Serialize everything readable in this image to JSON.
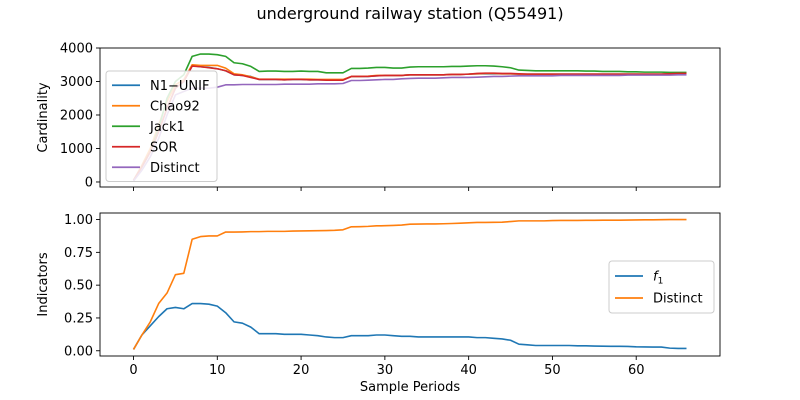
{
  "chart_data": [
    {
      "type": "line",
      "title": "underground railway station (Q55491)",
      "xlabel": "",
      "ylabel": "Cardinality",
      "xlim": [
        -4,
        70
      ],
      "ylim": [
        -150,
        4000
      ],
      "xticks": [
        0,
        10,
        20,
        30,
        40,
        50,
        60
      ],
      "yticks": [
        0,
        1000,
        2000,
        3000,
        4000
      ],
      "xtick_labels_visible": false,
      "legend_position": "center-left",
      "x": [
        0,
        1,
        2,
        3,
        4,
        5,
        6,
        7,
        8,
        9,
        10,
        11,
        12,
        13,
        14,
        15,
        16,
        17,
        18,
        19,
        20,
        21,
        22,
        23,
        24,
        25,
        26,
        27,
        28,
        29,
        30,
        31,
        32,
        33,
        34,
        35,
        36,
        37,
        38,
        39,
        40,
        41,
        42,
        43,
        44,
        45,
        46,
        47,
        48,
        49,
        50,
        51,
        52,
        53,
        54,
        55,
        56,
        57,
        58,
        59,
        60,
        61,
        62,
        63,
        64,
        65,
        66
      ],
      "series": [
        {
          "name": "N1−UNIF",
          "color": "#1f77b4",
          "values": [
            50,
            450,
            900,
            1500,
            2200,
            2800,
            3000,
            3470,
            3440,
            3420,
            3380,
            3320,
            3200,
            3180,
            3150,
            3060,
            3060,
            3060,
            3050,
            3060,
            3060,
            3050,
            3050,
            3050,
            3050,
            3050,
            3150,
            3150,
            3150,
            3170,
            3180,
            3180,
            3180,
            3200,
            3200,
            3200,
            3200,
            3200,
            3210,
            3210,
            3220,
            3230,
            3230,
            3230,
            3230,
            3230,
            3220,
            3220,
            3220,
            3220,
            3220,
            3220,
            3220,
            3220,
            3220,
            3220,
            3220,
            3220,
            3220,
            3220,
            3220,
            3220,
            3220,
            3220,
            3230,
            3240,
            3240
          ]
        },
        {
          "name": "Chao92",
          "color": "#ff7f0e",
          "values": [
            50,
            500,
            1000,
            1700,
            2400,
            2900,
            3050,
            3500,
            3480,
            3480,
            3480,
            3400,
            3230,
            3200,
            3140,
            3070,
            3070,
            3070,
            3070,
            3070,
            3070,
            3070,
            3060,
            3060,
            3060,
            3060,
            3150,
            3150,
            3160,
            3180,
            3180,
            3180,
            3180,
            3200,
            3200,
            3200,
            3200,
            3200,
            3210,
            3210,
            3220,
            3230,
            3240,
            3240,
            3230,
            3230,
            3220,
            3220,
            3220,
            3220,
            3220,
            3220,
            3220,
            3220,
            3220,
            3220,
            3220,
            3220,
            3220,
            3220,
            3220,
            3220,
            3220,
            3220,
            3230,
            3240,
            3240
          ]
        },
        {
          "name": "Jack1",
          "color": "#2ca02c",
          "values": [
            50,
            450,
            900,
            1600,
            2500,
            3000,
            3200,
            3750,
            3820,
            3820,
            3800,
            3750,
            3560,
            3530,
            3450,
            3300,
            3310,
            3310,
            3300,
            3300,
            3310,
            3300,
            3300,
            3260,
            3260,
            3260,
            3390,
            3390,
            3400,
            3420,
            3420,
            3400,
            3400,
            3430,
            3440,
            3440,
            3440,
            3440,
            3450,
            3450,
            3460,
            3470,
            3470,
            3460,
            3440,
            3410,
            3340,
            3330,
            3320,
            3320,
            3320,
            3320,
            3320,
            3320,
            3310,
            3310,
            3300,
            3300,
            3300,
            3290,
            3290,
            3280,
            3280,
            3280,
            3270,
            3270,
            3270
          ]
        },
        {
          "name": "SOR",
          "color": "#d62728",
          "values": [
            50,
            450,
            900,
            1500,
            2200,
            2800,
            3000,
            3460,
            3440,
            3410,
            3380,
            3320,
            3200,
            3180,
            3120,
            3060,
            3060,
            3060,
            3050,
            3060,
            3060,
            3050,
            3050,
            3040,
            3040,
            3040,
            3150,
            3150,
            3150,
            3170,
            3180,
            3180,
            3180,
            3200,
            3200,
            3200,
            3200,
            3200,
            3210,
            3210,
            3220,
            3240,
            3250,
            3250,
            3240,
            3240,
            3230,
            3220,
            3220,
            3220,
            3220,
            3220,
            3220,
            3220,
            3220,
            3220,
            3220,
            3220,
            3220,
            3220,
            3220,
            3220,
            3220,
            3220,
            3230,
            3240,
            3240
          ]
        },
        {
          "name": "Distinct",
          "color": "#9467bd",
          "values": [
            30,
            350,
            750,
            1300,
            2000,
            2600,
            2700,
            2800,
            2800,
            2800,
            2830,
            2900,
            2900,
            2910,
            2910,
            2910,
            2910,
            2910,
            2920,
            2920,
            2920,
            2920,
            2930,
            2930,
            2930,
            2940,
            3030,
            3030,
            3040,
            3050,
            3060,
            3060,
            3080,
            3090,
            3100,
            3100,
            3100,
            3110,
            3120,
            3120,
            3120,
            3130,
            3140,
            3150,
            3150,
            3160,
            3170,
            3170,
            3170,
            3170,
            3170,
            3180,
            3180,
            3180,
            3180,
            3180,
            3180,
            3180,
            3180,
            3190,
            3190,
            3190,
            3190,
            3190,
            3190,
            3200,
            3200
          ]
        }
      ]
    },
    {
      "type": "line",
      "title": "",
      "xlabel": "Sample Periods",
      "ylabel": "Indicators",
      "xlim": [
        -4,
        70
      ],
      "ylim": [
        -0.04,
        1.05
      ],
      "xticks": [
        0,
        10,
        20,
        30,
        40,
        50,
        60
      ],
      "yticks": [
        0.0,
        0.25,
        0.5,
        0.75,
        1.0
      ],
      "ytick_labels": [
        "0.00",
        "0.25",
        "0.50",
        "0.75",
        "1.00"
      ],
      "legend_position": "center-right",
      "x": [
        0,
        1,
        2,
        3,
        4,
        5,
        6,
        7,
        8,
        9,
        10,
        11,
        12,
        13,
        14,
        15,
        16,
        17,
        18,
        19,
        20,
        21,
        22,
        23,
        24,
        25,
        26,
        27,
        28,
        29,
        30,
        31,
        32,
        33,
        34,
        35,
        36,
        37,
        38,
        39,
        40,
        41,
        42,
        43,
        44,
        45,
        46,
        47,
        48,
        49,
        50,
        51,
        52,
        53,
        54,
        55,
        56,
        57,
        58,
        59,
        60,
        61,
        62,
        63,
        64,
        65,
        66
      ],
      "series": [
        {
          "name": "f1",
          "label_main": "f",
          "label_sub": "1",
          "color": "#1f77b4",
          "values": [
            0.01,
            0.12,
            0.19,
            0.26,
            0.32,
            0.33,
            0.32,
            0.36,
            0.36,
            0.355,
            0.34,
            0.29,
            0.22,
            0.21,
            0.18,
            0.13,
            0.13,
            0.13,
            0.125,
            0.125,
            0.125,
            0.12,
            0.115,
            0.105,
            0.1,
            0.1,
            0.115,
            0.115,
            0.115,
            0.12,
            0.12,
            0.115,
            0.11,
            0.11,
            0.105,
            0.105,
            0.105,
            0.105,
            0.105,
            0.105,
            0.105,
            0.1,
            0.1,
            0.095,
            0.09,
            0.08,
            0.05,
            0.045,
            0.04,
            0.04,
            0.04,
            0.04,
            0.04,
            0.038,
            0.038,
            0.036,
            0.035,
            0.034,
            0.034,
            0.033,
            0.03,
            0.029,
            0.028,
            0.028,
            0.02,
            0.018,
            0.018
          ]
        },
        {
          "name": "Distinct",
          "color": "#ff7f0e",
          "values": [
            0.01,
            0.12,
            0.22,
            0.36,
            0.44,
            0.58,
            0.59,
            0.85,
            0.87,
            0.875,
            0.875,
            0.905,
            0.905,
            0.906,
            0.908,
            0.908,
            0.91,
            0.91,
            0.91,
            0.912,
            0.913,
            0.914,
            0.915,
            0.916,
            0.918,
            0.922,
            0.945,
            0.946,
            0.948,
            0.952,
            0.953,
            0.955,
            0.958,
            0.965,
            0.966,
            0.967,
            0.967,
            0.968,
            0.97,
            0.972,
            0.975,
            0.978,
            0.978,
            0.979,
            0.98,
            0.985,
            0.99,
            0.99,
            0.99,
            0.99,
            0.992,
            0.993,
            0.993,
            0.993,
            0.994,
            0.994,
            0.995,
            0.995,
            0.995,
            0.996,
            0.997,
            0.998,
            0.998,
            0.999,
            1.0,
            1.0,
            1.0
          ]
        }
      ]
    }
  ]
}
